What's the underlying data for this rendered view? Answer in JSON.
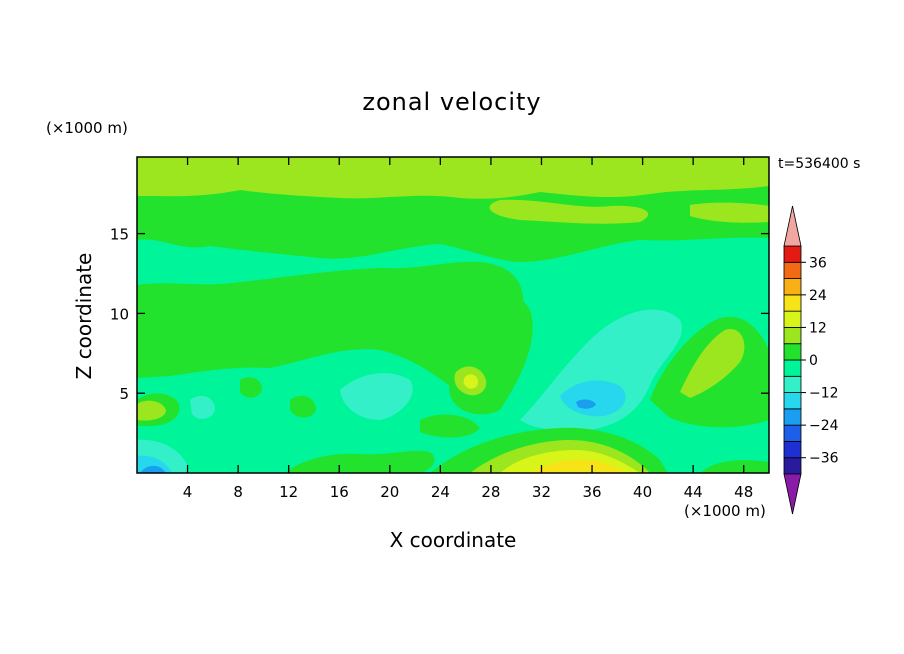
{
  "chart_data": {
    "type": "heatmap",
    "title": "zonal velocity",
    "xlabel": "X coordinate",
    "ylabel": "Z coordinate",
    "x_unit": "(×1000 m)",
    "y_unit": "(×1000 m)",
    "time_label": "t=536400 s",
    "xlim": [
      0,
      50
    ],
    "ylim": [
      0,
      19.8
    ],
    "x_ticks": [
      4,
      8,
      12,
      16,
      20,
      24,
      28,
      32,
      36,
      40,
      44,
      48
    ],
    "y_ticks": [
      5,
      10,
      15
    ],
    "colorbar": {
      "levels": [
        -42,
        -36,
        -30,
        -24,
        -18,
        -12,
        -6,
        0,
        6,
        12,
        18,
        24,
        30,
        36,
        42
      ],
      "tick_labels": [
        "36",
        "24",
        "12",
        "0",
        "−12",
        "−24",
        "−36"
      ],
      "tick_values": [
        36,
        24,
        12,
        0,
        -12,
        -24,
        -36
      ],
      "colors": [
        "#4c0a73",
        "#2a1a9c",
        "#1e30d2",
        "#1c5fe8",
        "#1a9ef0",
        "#27d7ee",
        "#33f0c8",
        "#00f59a",
        "#22e22e",
        "#9be61e",
        "#d8f51a",
        "#f6e418",
        "#f8b014",
        "#f26a14",
        "#e31b14",
        "#c81010"
      ],
      "over_color": "#f2a6a0",
      "under_color": "#8a1aa8"
    },
    "field_description_values": {
      "background": 2,
      "features": [
        {
          "name": "upper band",
          "x_range": [
            0,
            50
          ],
          "z_range": [
            14.5,
            19.8
          ],
          "value": 7
        },
        {
          "name": "top strip",
          "x_range": [
            0,
            50
          ],
          "z_range": [
            18.2,
            19.8
          ],
          "value": 12
        },
        {
          "name": "surface jet",
          "x": 36,
          "z": 0.5,
          "value": 20
        },
        {
          "name": "minimum near origin",
          "x": 1,
          "z": 0.2,
          "value": -18
        },
        {
          "name": "minimum",
          "x": 35,
          "z": 4.4,
          "value": -20
        },
        {
          "name": "local max",
          "x": 26.5,
          "z": 5.5,
          "value": 12
        }
      ]
    }
  }
}
